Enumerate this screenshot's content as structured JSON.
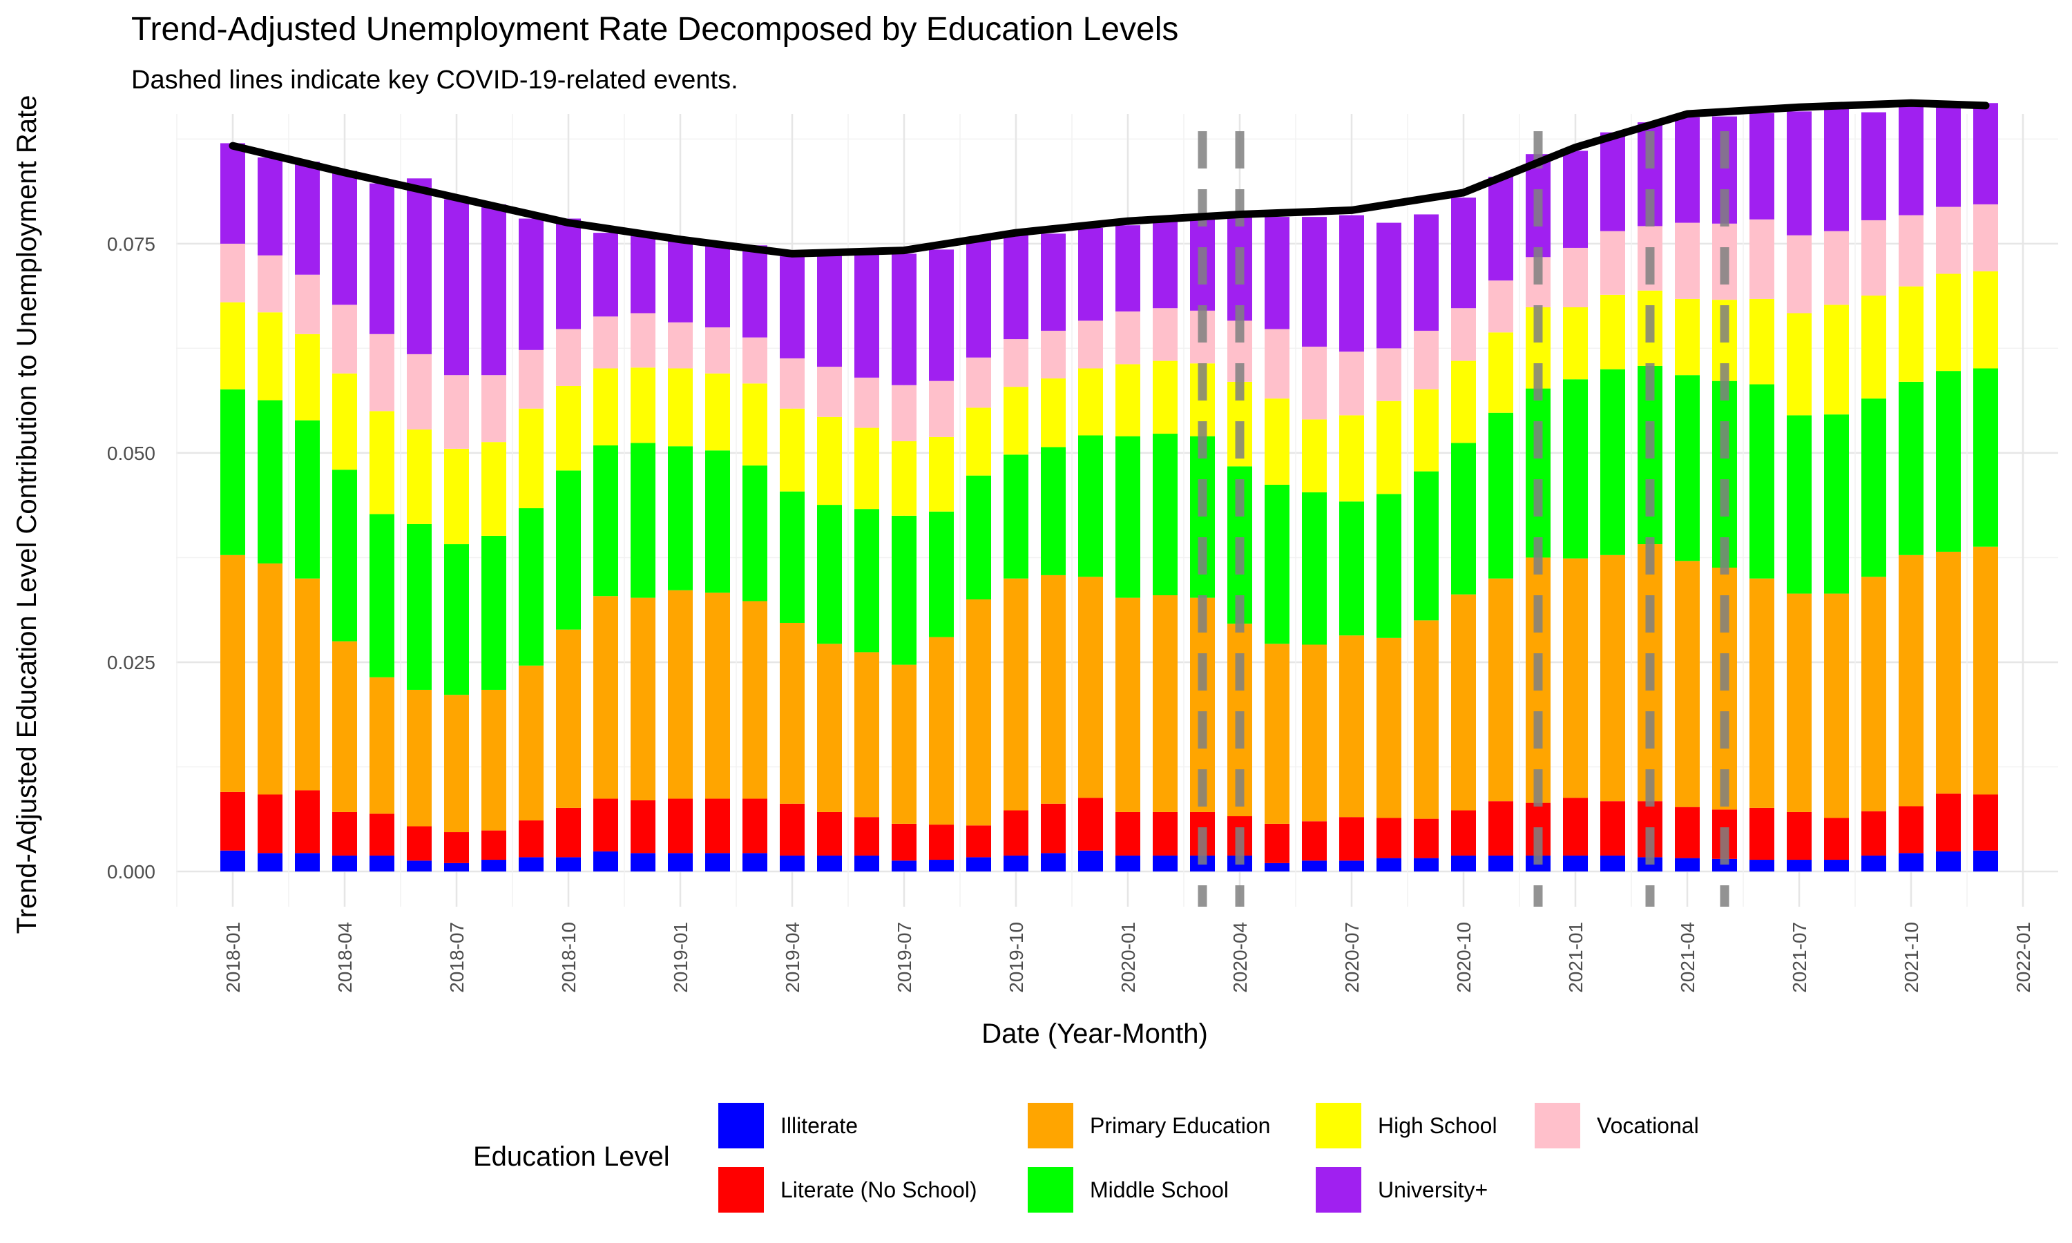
{
  "chart_data": {
    "type": "bar",
    "stacked": true,
    "title": "Trend-Adjusted Unemployment Rate Decomposed by Education Levels",
    "subtitle": "Dashed lines indicate key COVID-19-related events.",
    "xlabel": "Date (Year-Month)",
    "ylabel": "Trend-Adjusted Education Level Contribution to Unemployment Rate",
    "ylim": [
      0,
      0.0905
    ],
    "y_ticks": [
      "0.000",
      "0.025",
      "0.050",
      "0.075"
    ],
    "x_ticks": [
      "2018-01",
      "2018-04",
      "2018-07",
      "2018-10",
      "2019-01",
      "2019-04",
      "2019-07",
      "2019-10",
      "2020-01",
      "2020-04",
      "2020-07",
      "2020-10",
      "2021-01",
      "2021-04",
      "2021-07",
      "2021-10",
      "2022-01"
    ],
    "categories": [
      "2018-01",
      "2018-02",
      "2018-03",
      "2018-04",
      "2018-05",
      "2018-06",
      "2018-07",
      "2018-08",
      "2018-09",
      "2018-10",
      "2018-11",
      "2018-12",
      "2019-01",
      "2019-02",
      "2019-03",
      "2019-04",
      "2019-05",
      "2019-06",
      "2019-07",
      "2019-08",
      "2019-09",
      "2019-10",
      "2019-11",
      "2019-12",
      "2020-01",
      "2020-02",
      "2020-03",
      "2020-04",
      "2020-05",
      "2020-06",
      "2020-07",
      "2020-08",
      "2020-09",
      "2020-10",
      "2020-11",
      "2020-12",
      "2021-01",
      "2021-02",
      "2021-03",
      "2021-04",
      "2021-05",
      "2021-06",
      "2021-07",
      "2021-08",
      "2021-09",
      "2021-10",
      "2021-11",
      "2021-12"
    ],
    "legend_title": "Education Level",
    "legend_position": "bottom",
    "grid": true,
    "series": [
      {
        "name": "Illiterate",
        "color": "#0000FF",
        "values": [
          0.0025,
          0.0022,
          0.0022,
          0.0019,
          0.0019,
          0.0013,
          0.001,
          0.0014,
          0.0017,
          0.0017,
          0.0024,
          0.0022,
          0.0022,
          0.0022,
          0.0022,
          0.0019,
          0.0019,
          0.0019,
          0.0013,
          0.0014,
          0.0017,
          0.0019,
          0.0022,
          0.0025,
          0.0019,
          0.0019,
          0.0019,
          0.0019,
          0.001,
          0.0013,
          0.0013,
          0.0016,
          0.0016,
          0.0019,
          0.0019,
          0.0019,
          0.0019,
          0.0019,
          0.0017,
          0.0016,
          0.0015,
          0.0014,
          0.0014,
          0.0014,
          0.0019,
          0.0022,
          0.0024,
          0.0025
        ]
      },
      {
        "name": "Literate (No School)",
        "color": "#FF0000",
        "values": [
          0.007,
          0.007,
          0.0075,
          0.0052,
          0.005,
          0.0041,
          0.0037,
          0.0035,
          0.0044,
          0.0059,
          0.0063,
          0.0063,
          0.0065,
          0.0065,
          0.0065,
          0.0062,
          0.0052,
          0.0046,
          0.0044,
          0.0042,
          0.0038,
          0.0054,
          0.0059,
          0.0063,
          0.0052,
          0.0052,
          0.0052,
          0.0047,
          0.0047,
          0.0047,
          0.0052,
          0.0048,
          0.0047,
          0.0054,
          0.0065,
          0.0063,
          0.0069,
          0.0065,
          0.0067,
          0.0061,
          0.0059,
          0.0062,
          0.0057,
          0.005,
          0.0053,
          0.0056,
          0.0069,
          0.0067
        ]
      },
      {
        "name": "Primary Education",
        "color": "#FFA500",
        "values": [
          0.0283,
          0.0276,
          0.0253,
          0.0204,
          0.0163,
          0.0163,
          0.0164,
          0.0168,
          0.0185,
          0.0213,
          0.0242,
          0.0242,
          0.0249,
          0.0246,
          0.0236,
          0.0216,
          0.0201,
          0.0197,
          0.019,
          0.0224,
          0.027,
          0.0277,
          0.0273,
          0.0264,
          0.0256,
          0.0259,
          0.0256,
          0.023,
          0.0215,
          0.0211,
          0.0217,
          0.0215,
          0.0237,
          0.0258,
          0.0266,
          0.0293,
          0.0286,
          0.0294,
          0.0307,
          0.0294,
          0.0289,
          0.0274,
          0.0261,
          0.0268,
          0.028,
          0.03,
          0.0289,
          0.0296
        ]
      },
      {
        "name": "Middle School",
        "color": "#00FF00",
        "values": [
          0.0198,
          0.0195,
          0.0189,
          0.0205,
          0.0195,
          0.0198,
          0.018,
          0.0184,
          0.0188,
          0.019,
          0.018,
          0.0185,
          0.0172,
          0.017,
          0.0162,
          0.0157,
          0.0166,
          0.0171,
          0.0178,
          0.015,
          0.0148,
          0.0148,
          0.0153,
          0.0169,
          0.0193,
          0.0193,
          0.0193,
          0.0188,
          0.019,
          0.0182,
          0.016,
          0.0172,
          0.0178,
          0.0181,
          0.0198,
          0.0202,
          0.0214,
          0.0222,
          0.0213,
          0.0222,
          0.0223,
          0.0232,
          0.0213,
          0.0214,
          0.0213,
          0.0207,
          0.0216,
          0.0213
        ]
      },
      {
        "name": "High School",
        "color": "#FFFF00",
        "values": [
          0.0104,
          0.0105,
          0.0103,
          0.0115,
          0.0123,
          0.0113,
          0.0114,
          0.0112,
          0.0119,
          0.0101,
          0.0092,
          0.009,
          0.0093,
          0.0092,
          0.0098,
          0.0099,
          0.0105,
          0.0097,
          0.0089,
          0.0089,
          0.0081,
          0.0081,
          0.0082,
          0.008,
          0.0086,
          0.0087,
          0.0087,
          0.0101,
          0.0103,
          0.0087,
          0.0103,
          0.0111,
          0.0098,
          0.0098,
          0.0096,
          0.0097,
          0.0086,
          0.0089,
          0.009,
          0.0091,
          0.0097,
          0.0102,
          0.0122,
          0.0131,
          0.0123,
          0.0114,
          0.0116,
          0.0116
        ]
      },
      {
        "name": "Vocational",
        "color": "#FFC0CB",
        "values": [
          0.007,
          0.0068,
          0.0071,
          0.0082,
          0.0092,
          0.009,
          0.0088,
          0.008,
          0.007,
          0.0068,
          0.0062,
          0.0065,
          0.0055,
          0.0055,
          0.0055,
          0.006,
          0.006,
          0.006,
          0.0067,
          0.0067,
          0.006,
          0.0057,
          0.0057,
          0.0057,
          0.0063,
          0.0063,
          0.0063,
          0.0073,
          0.0083,
          0.0087,
          0.0076,
          0.0063,
          0.007,
          0.0063,
          0.0062,
          0.006,
          0.0071,
          0.0076,
          0.0077,
          0.0091,
          0.0091,
          0.0095,
          0.0093,
          0.0088,
          0.009,
          0.0085,
          0.008,
          0.008
        ]
      },
      {
        "name": "University+",
        "color": "#A020F0",
        "values": [
          0.012,
          0.0117,
          0.0135,
          0.016,
          0.018,
          0.021,
          0.021,
          0.0204,
          0.0157,
          0.0132,
          0.01,
          0.0095,
          0.01,
          0.01,
          0.011,
          0.0122,
          0.0133,
          0.0147,
          0.0157,
          0.0157,
          0.014,
          0.0124,
          0.0116,
          0.0111,
          0.0103,
          0.0104,
          0.0112,
          0.0126,
          0.0134,
          0.0155,
          0.0163,
          0.015,
          0.0139,
          0.0132,
          0.0124,
          0.0123,
          0.0116,
          0.0118,
          0.0124,
          0.0126,
          0.0128,
          0.0127,
          0.0148,
          0.0147,
          0.0129,
          0.0131,
          0.0122,
          0.0121
        ]
      }
    ],
    "trend_line": {
      "x": [
        "2018-01",
        "2018-04",
        "2018-07",
        "2018-10",
        "2019-01",
        "2019-04",
        "2019-07",
        "2019-10",
        "2020-01",
        "2020-04",
        "2020-07",
        "2020-10",
        "2021-01",
        "2021-04",
        "2021-07",
        "2021-10",
        "2021-12"
      ],
      "y": [
        0.0867,
        0.0835,
        0.0805,
        0.0775,
        0.0755,
        0.0738,
        0.0742,
        0.0763,
        0.0777,
        0.0785,
        0.079,
        0.0811,
        0.0865,
        0.0905,
        0.0913,
        0.0918,
        0.0915
      ]
    },
    "event_lines": [
      "2020-03",
      "2020-04",
      "2020-12",
      "2021-03",
      "2021-05"
    ]
  }
}
